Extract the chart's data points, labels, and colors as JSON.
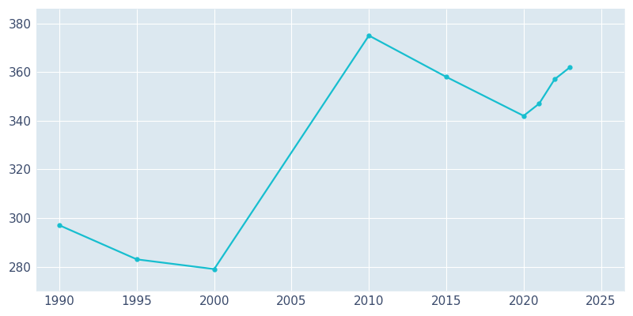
{
  "years": [
    1990,
    1995,
    2000,
    2010,
    2015,
    2020,
    2021,
    2022,
    2023
  ],
  "population": [
    297,
    283,
    279,
    375,
    358,
    342,
    347,
    357,
    362
  ],
  "line_color": "#17becf",
  "marker": "o",
  "marker_size": 3.5,
  "line_width": 1.6,
  "fig_bg_color": "#ffffff",
  "plot_bg_color": "#dce8f0",
  "grid_color": "#ffffff",
  "xlabel": "",
  "ylabel": "",
  "xlim": [
    1988.5,
    2026.5
  ],
  "ylim": [
    270,
    386
  ],
  "xticks": [
    1990,
    1995,
    2000,
    2005,
    2010,
    2015,
    2020,
    2025
  ],
  "yticks": [
    280,
    300,
    320,
    340,
    360,
    380
  ],
  "tick_fontsize": 11,
  "tick_color": "#3a4a6b",
  "grid_linewidth": 0.8
}
